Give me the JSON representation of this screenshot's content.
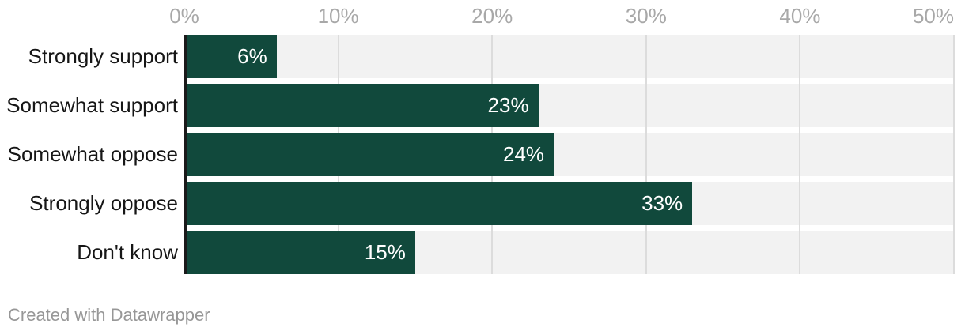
{
  "chart_data": {
    "type": "bar",
    "orientation": "horizontal",
    "categories": [
      "Strongly support",
      "Somewhat support",
      "Somewhat oppose",
      "Strongly oppose",
      "Don't know"
    ],
    "values": [
      6,
      23,
      24,
      33,
      15
    ],
    "value_labels": [
      "6%",
      "23%",
      "24%",
      "33%",
      "15%"
    ],
    "x_axis": {
      "min": 0,
      "max": 50,
      "ticks": [
        {
          "value": 0,
          "label": "0%"
        },
        {
          "value": 10,
          "label": "10%"
        },
        {
          "value": 20,
          "label": "20%"
        },
        {
          "value": 30,
          "label": "30%"
        },
        {
          "value": 40,
          "label": "40%"
        },
        {
          "value": 50,
          "label": "50%"
        }
      ]
    },
    "grid": "vertical",
    "legend": "none",
    "colors": {
      "bar": "#11493c",
      "row_background": "#f2f2f2",
      "gridline": "#dcdcdc",
      "axis_line": "#1a1a1a",
      "tick_label": "#a8a8a8",
      "category_label": "#161616",
      "value_label": "#ffffff",
      "credit_text": "#979797",
      "background": "#ffffff"
    }
  },
  "footer": {
    "credit": "Created with Datawrapper"
  }
}
